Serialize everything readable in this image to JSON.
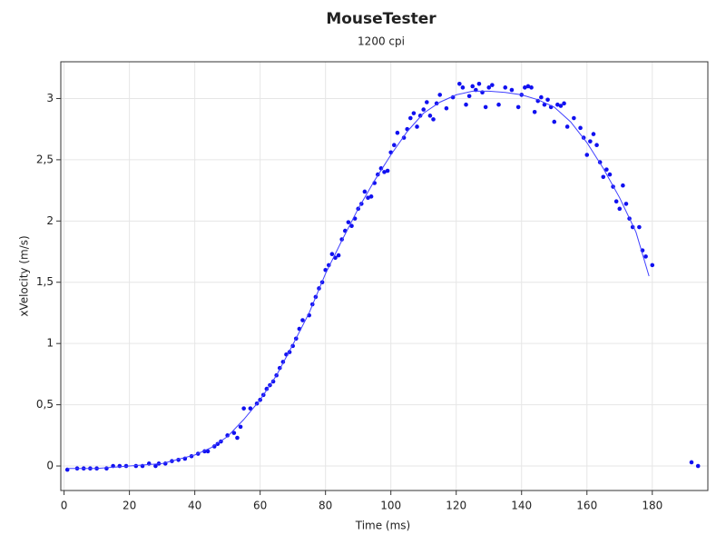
{
  "chart_data": {
    "type": "scatter",
    "title": "MouseTester",
    "subtitle": "1200 cpi",
    "x_label": "Time (ms)",
    "y_label": "xVelocity (m/s)",
    "xlim": [
      -1,
      197
    ],
    "ylim": [
      -0.2,
      3.3
    ],
    "xticks": [
      0,
      20,
      40,
      60,
      80,
      100,
      120,
      140,
      160,
      180
    ],
    "yticks": [
      0,
      {
        "value": 0.5,
        "label": "0,5"
      },
      1,
      {
        "value": 1.5,
        "label": "1,5"
      },
      2,
      {
        "value": 2.5,
        "label": "2,5"
      },
      3
    ],
    "grid": true,
    "series": [
      {
        "style": "markers",
        "color": "#1010f0",
        "x": [
          1,
          4,
          6,
          8,
          10,
          13,
          15,
          17,
          19,
          22,
          24,
          26,
          28,
          29,
          31,
          33,
          35,
          37,
          39,
          41,
          43,
          44,
          46,
          47,
          48,
          50,
          52,
          53,
          54,
          55,
          57,
          59,
          60,
          61,
          62,
          63,
          64,
          65,
          66,
          67,
          68,
          69,
          70,
          71,
          72,
          73,
          75,
          76,
          77,
          78,
          79,
          80,
          81,
          82,
          83,
          84,
          85,
          86,
          87,
          88,
          89,
          90,
          91,
          92,
          93,
          94,
          95,
          96,
          97,
          98,
          99,
          100,
          101,
          102,
          104,
          105,
          106,
          107,
          108,
          109,
          110,
          111,
          112,
          113,
          114,
          115,
          117,
          119,
          121,
          122,
          123,
          124,
          125,
          126,
          127,
          128,
          129,
          130,
          131,
          133,
          135,
          137,
          139,
          140,
          141,
          142,
          143,
          144,
          145,
          146,
          147,
          148,
          149,
          150,
          151,
          152,
          153,
          154,
          156,
          158,
          159,
          160,
          161,
          162,
          163,
          164,
          165,
          166,
          167,
          168,
          169,
          170,
          171,
          172,
          173,
          174,
          176,
          177,
          178,
          180,
          192,
          194
        ],
        "values": [
          -0.03,
          -0.02,
          -0.02,
          -0.02,
          -0.02,
          -0.02,
          0.0,
          0.0,
          0.0,
          0.0,
          0.0,
          0.02,
          0.0,
          0.02,
          0.02,
          0.04,
          0.05,
          0.06,
          0.08,
          0.1,
          0.12,
          0.12,
          0.16,
          0.18,
          0.2,
          0.25,
          0.27,
          0.23,
          0.32,
          0.47,
          0.47,
          0.51,
          0.54,
          0.58,
          0.63,
          0.66,
          0.69,
          0.74,
          0.8,
          0.85,
          0.91,
          0.93,
          0.98,
          1.04,
          1.12,
          1.19,
          1.23,
          1.32,
          1.38,
          1.45,
          1.5,
          1.6,
          1.64,
          1.73,
          1.7,
          1.72,
          1.85,
          1.92,
          1.99,
          1.96,
          2.02,
          2.1,
          2.14,
          2.24,
          2.19,
          2.2,
          2.31,
          2.38,
          2.43,
          2.4,
          2.41,
          2.56,
          2.62,
          2.72,
          2.68,
          2.75,
          2.84,
          2.88,
          2.77,
          2.86,
          2.91,
          2.97,
          2.86,
          2.83,
          2.96,
          3.03,
          2.92,
          3.01,
          3.12,
          3.09,
          2.95,
          3.02,
          3.1,
          3.07,
          3.12,
          3.05,
          2.93,
          3.09,
          3.11,
          2.95,
          3.09,
          3.07,
          2.93,
          3.03,
          3.09,
          3.1,
          3.09,
          2.89,
          2.98,
          3.01,
          2.95,
          2.99,
          2.93,
          2.81,
          2.95,
          2.94,
          2.96,
          2.77,
          2.84,
          2.76,
          2.68,
          2.54,
          2.65,
          2.71,
          2.62,
          2.48,
          2.36,
          2.42,
          2.38,
          2.28,
          2.16,
          2.1,
          2.29,
          2.14,
          2.02,
          1.95,
          1.95,
          1.76,
          1.71,
          1.64,
          0.03,
          0.0
        ]
      },
      {
        "style": "line",
        "color": "#4040ff",
        "x": [
          1,
          10,
          20,
          30,
          40,
          45,
          50,
          55,
          60,
          65,
          70,
          75,
          80,
          85,
          90,
          95,
          100,
          105,
          110,
          115,
          120,
          125,
          130,
          135,
          140,
          145,
          150,
          155,
          160,
          165,
          170,
          175,
          179
        ],
        "values": [
          -0.02,
          -0.02,
          0.0,
          0.02,
          0.09,
          0.15,
          0.24,
          0.38,
          0.54,
          0.74,
          0.99,
          1.25,
          1.57,
          1.84,
          2.1,
          2.33,
          2.54,
          2.73,
          2.88,
          2.97,
          3.03,
          3.06,
          3.06,
          3.05,
          3.03,
          2.99,
          2.93,
          2.81,
          2.64,
          2.43,
          2.19,
          1.91,
          1.55
        ]
      }
    ]
  }
}
